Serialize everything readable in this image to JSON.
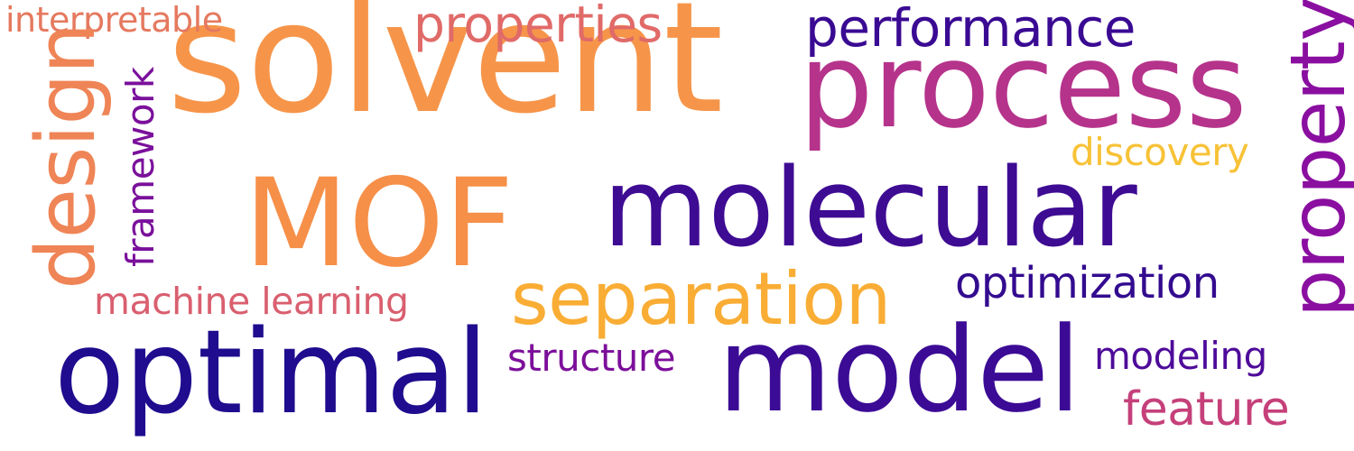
{
  "words": {
    "solvent": {
      "text": "solvent",
      "color": "#f6954a"
    },
    "process": {
      "text": "process",
      "color": "#b5338b"
    },
    "mof": {
      "text": "MOF",
      "color": "#f68f48"
    },
    "molecular": {
      "text": "molecular",
      "color": "#3e0b93"
    },
    "optimal": {
      "text": "optimal",
      "color": "#1f0c8e"
    },
    "model": {
      "text": "model",
      "color": "#3b0b95"
    },
    "separation": {
      "text": "separation",
      "color": "#f9ad35"
    },
    "performance": {
      "text": "performance",
      "color": "#3a0a93"
    },
    "properties": {
      "text": "properties",
      "color": "#e06a68"
    },
    "interpretable": {
      "text": "interpretable",
      "color": "#e5795f"
    },
    "discovery": {
      "text": "discovery",
      "color": "#f7c237"
    },
    "optimization": {
      "text": "optimization",
      "color": "#330b8f"
    },
    "structure": {
      "text": "structure",
      "color": "#7c0f9a"
    },
    "machine": {
      "text": "machine learning",
      "color": "#d95f6f"
    },
    "modeling": {
      "text": "modeling",
      "color": "#4e0b9a"
    },
    "feature": {
      "text": "feature",
      "color": "#c5407a"
    },
    "design": {
      "text": "design",
      "color": "#ef8456"
    },
    "framework": {
      "text": "framework",
      "color": "#7a109b"
    },
    "property": {
      "text": "property",
      "color": "#8a0fa0"
    }
  }
}
